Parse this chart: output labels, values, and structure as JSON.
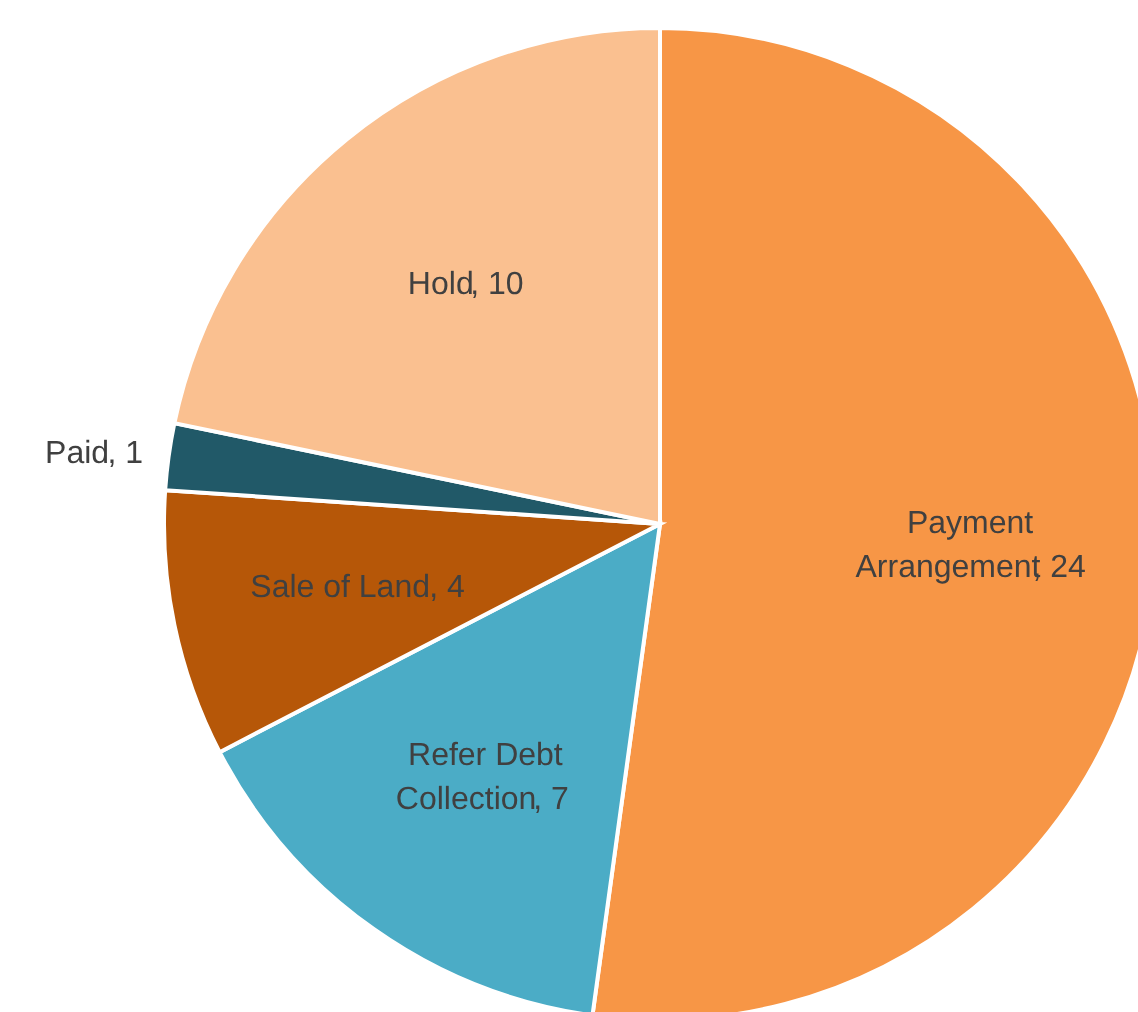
{
  "chart_data": {
    "type": "pie",
    "data_labels": true,
    "categories": [
      "Payment Arrangement",
      "Refer Debt Collection",
      "Sale of Land",
      "Paid",
      "Hold"
    ],
    "values": [
      24,
      7,
      4,
      1,
      10
    ],
    "value_labels": [
      ", 24",
      ", 7",
      ", 4",
      ", 1",
      ", 10"
    ],
    "colors": [
      "#f79646",
      "#4bacc6",
      "#b65708",
      "#215968",
      "#fac090"
    ]
  }
}
